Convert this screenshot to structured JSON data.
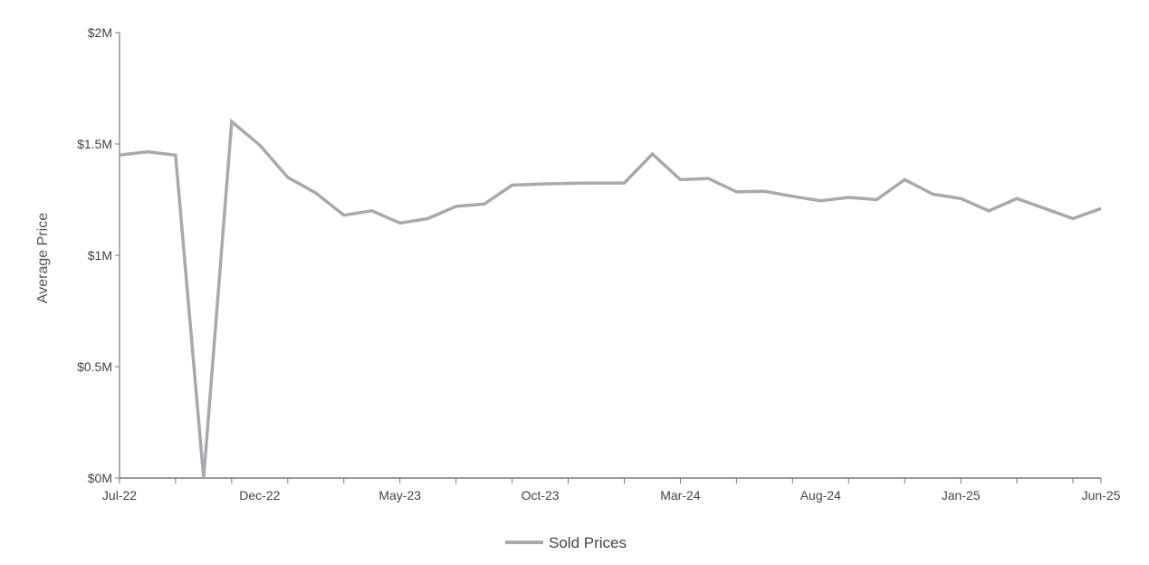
{
  "chart_data": {
    "type": "line",
    "title": "",
    "xlabel": "",
    "ylabel": "Average Price",
    "ylim": [
      0,
      2000000
    ],
    "y_ticks": [
      {
        "value": 0,
        "label": "$0M"
      },
      {
        "value": 500000,
        "label": "$0.5M"
      },
      {
        "value": 1000000,
        "label": "$1M"
      },
      {
        "value": 1500000,
        "label": "$1.5M"
      },
      {
        "value": 2000000,
        "label": "$2M"
      }
    ],
    "x": [
      "Jul-22",
      "Aug-22",
      "Sep-22",
      "Oct-22",
      "Nov-22",
      "Dec-22",
      "Jan-23",
      "Feb-23",
      "Mar-23",
      "Apr-23",
      "May-23",
      "Jun-23",
      "Jul-23",
      "Aug-23",
      "Sep-23",
      "Oct-23",
      "Nov-23",
      "Dec-23",
      "Jan-24",
      "Feb-24",
      "Mar-24",
      "Apr-24",
      "May-24",
      "Jun-24",
      "Jul-24",
      "Aug-24",
      "Sep-24",
      "Oct-24",
      "Nov-24",
      "Dec-24",
      "Jan-25",
      "Feb-25",
      "Mar-25",
      "Apr-25",
      "May-25",
      "Jun-25"
    ],
    "x_tick_labels": [
      "Jul-22",
      "Dec-22",
      "May-23",
      "Oct-23",
      "Mar-24",
      "Aug-24",
      "Jan-25",
      "Jun-25"
    ],
    "grid": false,
    "legend_position": "bottom",
    "series": [
      {
        "name": "Sold Prices",
        "color": "#a7a9ac",
        "values": [
          1450000,
          1465000,
          1450000,
          0,
          1600000,
          1495000,
          1350000,
          1280000,
          1180000,
          1200000,
          1145000,
          1165000,
          1220000,
          1230000,
          1315000,
          1320000,
          1323000,
          1325000,
          1325000,
          1455000,
          1340000,
          1345000,
          1285000,
          1288000,
          1265000,
          1245000,
          1260000,
          1250000,
          1340000,
          1275000,
          1255000,
          1200000,
          1255000,
          1210000,
          1165000,
          1210000
        ]
      }
    ]
  }
}
